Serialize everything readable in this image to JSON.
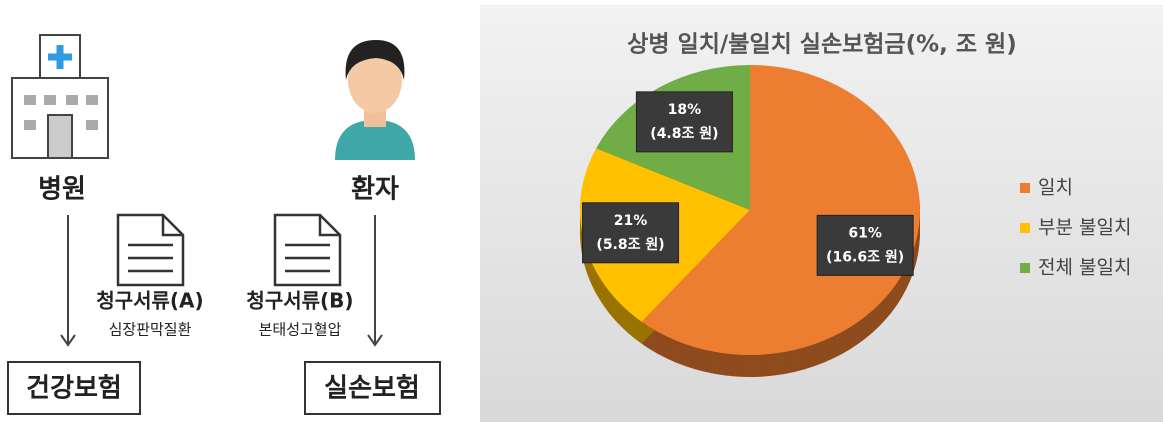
{
  "diagram": {
    "nodes": [
      {
        "label": "병원"
      },
      {
        "label": "환자"
      },
      {
        "label": "건강보험"
      },
      {
        "label": "실손보험"
      }
    ],
    "documents": [
      {
        "label": "청구서류(A)",
        "sublabel": "심장판막질환"
      },
      {
        "label": "청구서류(B)",
        "sublabel": "본태성고혈압"
      }
    ]
  },
  "chart_data": {
    "type": "pie",
    "title": "상병 일치/불일치 실손보험금(%, 조 원)",
    "categories": [
      "일치",
      "부분 불일치",
      "전체 불일치"
    ],
    "values": [
      61,
      21,
      18
    ],
    "value_labels": [
      "61%",
      "21%",
      "18%"
    ],
    "amount_labels": [
      "(16.6조 원)",
      "(5.8조 원)",
      "(4.8조 원)"
    ],
    "colors": [
      "#ed7d31",
      "#ffc000",
      "#70ad47"
    ],
    "legend": "right"
  }
}
